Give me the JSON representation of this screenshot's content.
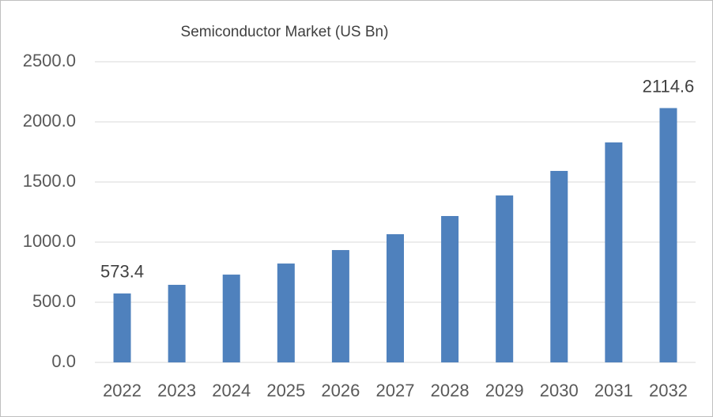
{
  "chart_data": {
    "type": "bar",
    "title": "Semiconductor Market (US Bn)",
    "categories": [
      "2022",
      "2023",
      "2024",
      "2025",
      "2026",
      "2027",
      "2028",
      "2029",
      "2030",
      "2031",
      "2032"
    ],
    "values": [
      573.4,
      645,
      730,
      822,
      934,
      1066,
      1217,
      1388,
      1592,
      1829,
      2114.6
    ],
    "value_labels": [
      "573.4",
      null,
      null,
      null,
      null,
      null,
      null,
      null,
      null,
      null,
      "2114.6"
    ],
    "color": "#4f81bd",
    "ylim": [
      0,
      2500
    ],
    "yticks": [
      {
        "value": 0,
        "label": "0.0"
      },
      {
        "value": 500,
        "label": "500.0"
      },
      {
        "value": 1000,
        "label": "1000.0"
      },
      {
        "value": 1500,
        "label": "1500.0"
      },
      {
        "value": 2000,
        "label": "2000.0"
      },
      {
        "value": 2500,
        "label": "2500.0"
      }
    ],
    "grid": true
  }
}
